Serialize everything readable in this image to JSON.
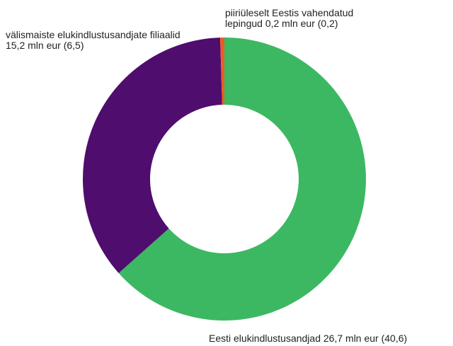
{
  "chart_data": {
    "type": "donut",
    "categories": [
      "Eesti elukindlustusandjad",
      "välismaiste elukindlustusandjate filiaalid",
      "piiriüleselt Eestis vahendatud lepingud"
    ],
    "values": [
      26.7,
      15.2,
      0.2
    ],
    "value_labels": [
      "26,7 mln eur (40,6)",
      "15,2 mln eur (6,5)",
      "0,2 mln eur (0,2)"
    ],
    "colors": [
      "#3cb862",
      "#4f0d6e",
      "#f05a22"
    ]
  }
}
